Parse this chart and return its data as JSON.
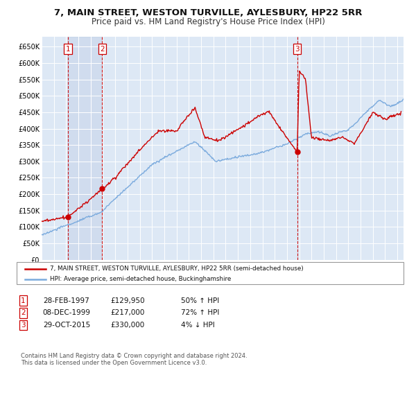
{
  "title": "7, MAIN STREET, WESTON TURVILLE, AYLESBURY, HP22 5RR",
  "subtitle": "Price paid vs. HM Land Registry's House Price Index (HPI)",
  "title_fontsize": 9.5,
  "subtitle_fontsize": 8.5,
  "background_color": "#ffffff",
  "plot_bg_color": "#dde8f5",
  "grid_color": "#ffffff",
  "legend_line1": "7, MAIN STREET, WESTON TURVILLE, AYLESBURY, HP22 5RR (semi-detached house)",
  "legend_line2": "HPI: Average price, semi-detached house, Buckinghamshire",
  "red_color": "#cc0000",
  "blue_color": "#7aaadd",
  "sale_years": [
    1997.15,
    1999.93,
    2015.83
  ],
  "sale_prices": [
    129950,
    217000,
    330000
  ],
  "sale_labels": [
    "1",
    "2",
    "3"
  ],
  "ylim": [
    0,
    680000
  ],
  "yticks": [
    0,
    50000,
    100000,
    150000,
    200000,
    250000,
    300000,
    350000,
    400000,
    450000,
    500000,
    550000,
    600000,
    650000
  ],
  "ytick_labels": [
    "£0",
    "£50K",
    "£100K",
    "£150K",
    "£200K",
    "£250K",
    "£300K",
    "£350K",
    "£400K",
    "£450K",
    "£500K",
    "£550K",
    "£600K",
    "£650K"
  ],
  "footer_line1": "Contains HM Land Registry data © Crown copyright and database right 2024.",
  "footer_line2": "This data is licensed under the Open Government Licence v3.0.",
  "xmin": 1995.0,
  "xmax": 2024.5,
  "table_data": [
    [
      "1",
      "28-FEB-1997",
      "£129,950",
      "50% ↑ HPI"
    ],
    [
      "2",
      "08-DEC-1999",
      "£217,000",
      "72% ↑ HPI"
    ],
    [
      "3",
      "29-OCT-2015",
      "£330,000",
      "4% ↓ HPI"
    ]
  ]
}
